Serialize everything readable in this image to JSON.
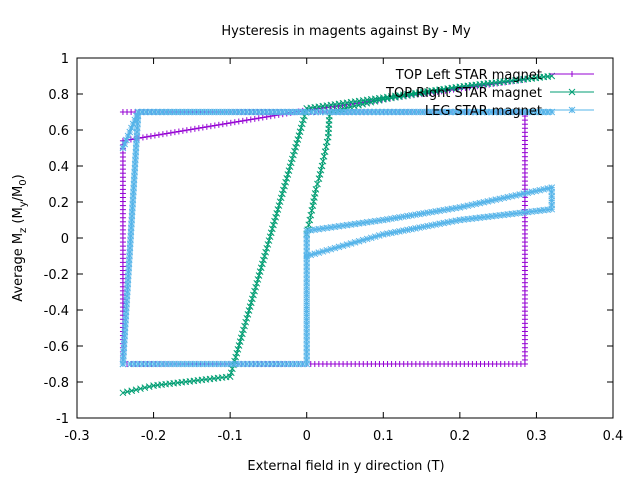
{
  "chart_data": {
    "type": "line",
    "title": "Hysteresis in magents against By - My",
    "xlabel": "External field in y direction (T)",
    "ylabel": {
      "prefix": "Average M",
      "sub1": "z",
      "mid": " (M",
      "sub2": "y",
      "mid2": "/M",
      "sub3": "0",
      "suffix": ")"
    },
    "xlim": [
      -0.3,
      0.4
    ],
    "ylim": [
      -1,
      1
    ],
    "xticks": [
      -0.3,
      -0.2,
      -0.1,
      0,
      0.1,
      0.2,
      0.3,
      0.4
    ],
    "xtick_labels": [
      "-0.3",
      "-0.2",
      "-0.1",
      "0",
      "0.1",
      "0.2",
      "0.3",
      "0.4"
    ],
    "yticks": [
      -1,
      -0.8,
      -0.6,
      -0.4,
      -0.2,
      0,
      0.2,
      0.4,
      0.6,
      0.8,
      1
    ],
    "ytick_labels": [
      "-1",
      "-0.8",
      "-0.6",
      "-0.4",
      "-0.2",
      "0",
      "0.2",
      "0.4",
      "0.6",
      "0.8",
      "1"
    ],
    "grid": false,
    "legend_position": "top-right",
    "series": [
      {
        "name": "TOP Left STAR magnet",
        "color": "#9400d3",
        "marker": "plus",
        "x": [
          -0.24,
          0.0,
          0.285,
          0.285,
          0.285,
          0.0,
          -0.24,
          -0.24,
          -0.24,
          0.0,
          0.285
        ],
        "y": [
          0.7,
          0.7,
          0.7,
          0.0,
          -0.7,
          -0.7,
          -0.7,
          0.0,
          0.54,
          0.71,
          0.88
        ]
      },
      {
        "name": "TOP Right STAR magnet",
        "color": "#009e73",
        "marker": "x",
        "x": [
          0.0,
          0.004,
          0.008,
          0.012,
          0.016,
          0.02,
          0.024,
          0.028,
          0.03,
          0.1,
          0.2,
          0.32,
          0.2,
          0.1,
          0.0,
          -0.1,
          -0.2,
          -0.24
        ],
        "y": [
          0.02,
          0.1,
          0.18,
          0.27,
          0.33,
          0.4,
          0.48,
          0.56,
          0.7,
          0.77,
          0.84,
          0.9,
          0.84,
          0.78,
          0.72,
          -0.77,
          -0.82,
          -0.86
        ]
      },
      {
        "name": "LEG STAR magnet",
        "color": "#56b4e9",
        "marker": "star",
        "x": [
          -0.24,
          -0.22,
          0.0,
          0.03,
          0.32,
          0.03,
          0.0,
          -0.22,
          -0.24,
          -0.24,
          -0.23,
          0.0,
          0.0,
          0.1,
          0.2,
          0.32,
          0.32,
          0.2,
          0.1,
          0.0
        ],
        "y": [
          0.5,
          0.7,
          0.7,
          0.7,
          0.7,
          0.7,
          0.7,
          0.7,
          -0.7,
          -0.7,
          -0.7,
          -0.7,
          0.04,
          0.1,
          0.17,
          0.28,
          0.16,
          0.1,
          0.02,
          -0.1
        ]
      }
    ]
  }
}
